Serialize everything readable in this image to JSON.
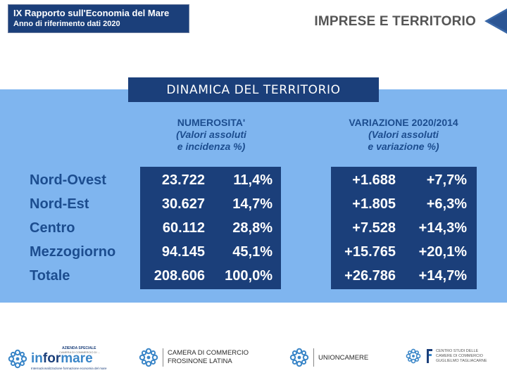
{
  "header": {
    "report_title": "IX Rapporto sull'Economia del Mare",
    "report_subtitle": "Anno di riferimento dati 2020",
    "section_title": "IMPRESE E TERRITORIO",
    "back_icon": "triangle-left-icon"
  },
  "panel": {
    "title": "DINAMICA DEL TERRITORIO",
    "numerosita_head": [
      "NUMEROSITA'",
      "(Valori assoluti",
      "e incidenza %)"
    ],
    "variazione_head": [
      "VARIAZIONE 2020/2014",
      "(Valori assoluti",
      "e variazione %)"
    ],
    "rows": [
      {
        "label": "Nord-Ovest",
        "num": "23.722",
        "inc": "11,4%",
        "var_abs": "+1.688",
        "var_pct": "+7,7%"
      },
      {
        "label": "Nord-Est",
        "num": "30.627",
        "inc": "14,7%",
        "var_abs": "+1.805",
        "var_pct": "+6,3%"
      },
      {
        "label": "Centro",
        "num": "60.112",
        "inc": "28,8%",
        "var_abs": "+7.528",
        "var_pct": "+14,3%"
      },
      {
        "label": "Mezzogiorno",
        "num": "94.145",
        "inc": "45,1%",
        "var_abs": "+15.765",
        "var_pct": "+20,1%"
      },
      {
        "label": "Totale",
        "num": "208.606",
        "inc": "100,0%",
        "var_abs": "+26.786",
        "var_pct": "+14,7%"
      }
    ]
  },
  "colors": {
    "navy": "#1b3f7a",
    "panel_bg": "#7fb5ef",
    "label_blue": "#1c4d8f",
    "logo_blue": "#3a86c8"
  },
  "footer": {
    "informare": {
      "top": "AZIENDA SPECIALE",
      "top2": "CAMERA DI COMMERCIO DI ...",
      "name_a": "in",
      "name_b": "for",
      "name_c": "mare",
      "tagline": "Internazionalizzazione formazione economia del mare"
    },
    "camera": {
      "line1": "CAMERA DI COMMERCIO",
      "line2": "FROSINONE LATINA"
    },
    "unioncamere": {
      "name": "UNIONCAMERE"
    },
    "centro_studi": {
      "line1": "CENTRO STUDI DELLE",
      "line2": "CAMERE DI COMMERCIO",
      "line3": "GUGLIELMO TAGLIACARNE"
    }
  }
}
